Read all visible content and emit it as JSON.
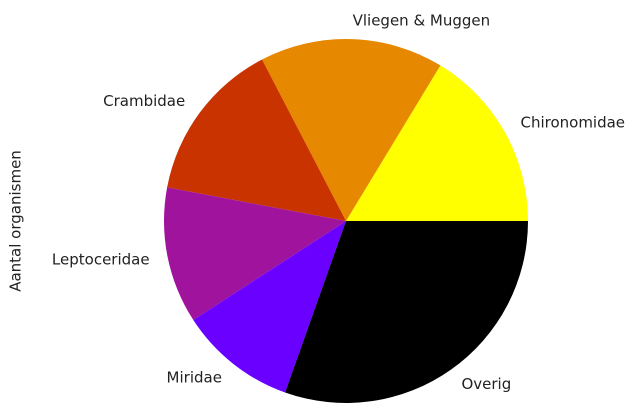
{
  "chart_data": {
    "type": "pie",
    "ylabel": "Aantal organismen",
    "categories": [
      "Chironomidae",
      "Vliegen & Muggen",
      "Crambidae",
      "Leptoceridae",
      "Miridae",
      "Overig"
    ],
    "values": [
      16.3,
      16.3,
      14.4,
      12.1,
      10.4,
      30.4
    ],
    "colors": [
      "#ffff00",
      "#e68800",
      "#c83300",
      "#a0139c",
      "#6a00ff",
      "#000000"
    ],
    "startangle": 0,
    "counterclock": true
  }
}
